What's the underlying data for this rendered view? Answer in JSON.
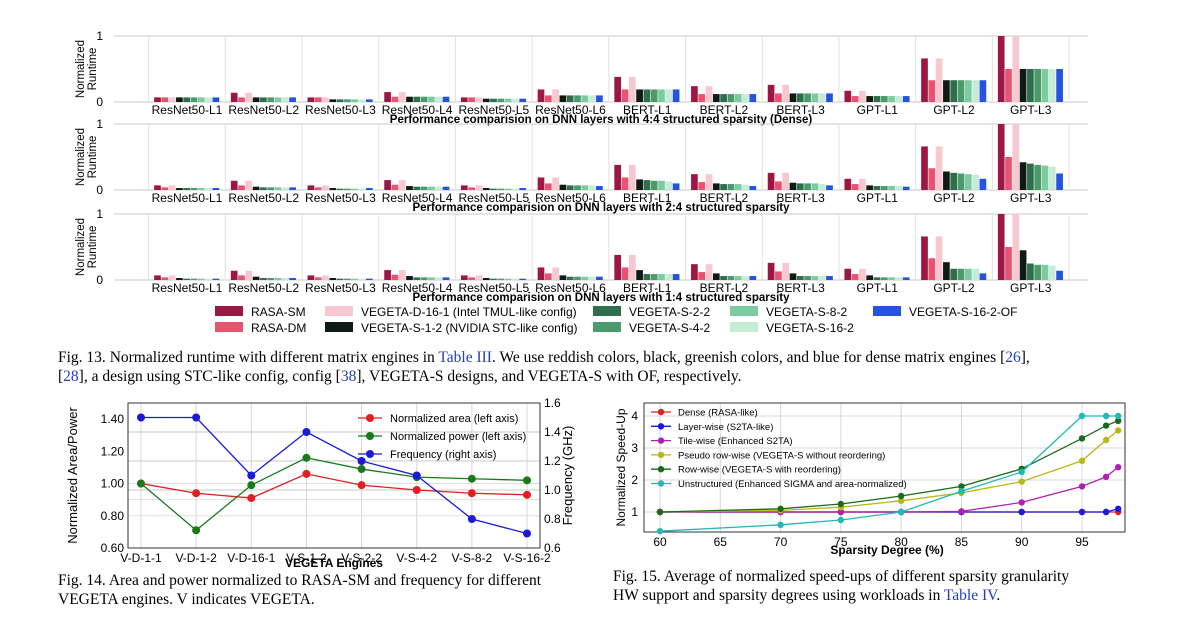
{
  "fig13": {
    "y_label_line1": "Normalized",
    "y_label_line2": "Runtime",
    "ylim": [
      0,
      1
    ],
    "y_ticks": [
      "1",
      "0"
    ],
    "layers": [
      "ResNet50-L1",
      "ResNet50-L2",
      "ResNet50-L3",
      "ResNet50-L4",
      "ResNet50-L5",
      "ResNet50-L6",
      "BERT-L1",
      "BERT-L2",
      "BERT-L3",
      "GPT-L1",
      "GPT-L2",
      "GPT-L3"
    ],
    "engines": [
      {
        "name": "RASA-SM",
        "color": "#9c1746"
      },
      {
        "name": "RASA-DM",
        "color": "#e8546f"
      },
      {
        "name": "VEGETA-D-16-1 (Intel TMUL-like config)",
        "color": "#f8c7d0"
      },
      {
        "name": "VEGETA-S-1-2 (NVIDIA STC-like config)",
        "color": "#0f1a14"
      },
      {
        "name": "VEGETA-S-2-2",
        "color": "#2f6e4c"
      },
      {
        "name": "VEGETA-S-4-2",
        "color": "#4a9a6c"
      },
      {
        "name": "VEGETA-S-8-2",
        "color": "#7ccaa0"
      },
      {
        "name": "VEGETA-S-16-2",
        "color": "#c6ecd6"
      },
      {
        "name": "VEGETA-S-16-2-OF",
        "color": "#2552e0"
      }
    ],
    "legend_order": [
      0,
      2,
      4,
      6,
      8,
      1,
      3,
      5,
      7
    ],
    "panels": [
      {
        "caption": "Performance comparision on DNN layers with 4:4 structured sparsity (Dense)",
        "values": [
          [
            0.07,
            0.07,
            0.07,
            0.07,
            0.07,
            0.07,
            0.07,
            0.07,
            0.07
          ],
          [
            0.14,
            0.07,
            0.14,
            0.07,
            0.07,
            0.07,
            0.07,
            0.07,
            0.07
          ],
          [
            0.07,
            0.07,
            0.07,
            0.04,
            0.04,
            0.04,
            0.04,
            0.04,
            0.04
          ],
          [
            0.15,
            0.08,
            0.15,
            0.08,
            0.08,
            0.08,
            0.08,
            0.08,
            0.08
          ],
          [
            0.07,
            0.07,
            0.07,
            0.05,
            0.05,
            0.05,
            0.05,
            0.05,
            0.05
          ],
          [
            0.19,
            0.1,
            0.19,
            0.1,
            0.1,
            0.1,
            0.1,
            0.1,
            0.1
          ],
          [
            0.38,
            0.19,
            0.38,
            0.19,
            0.19,
            0.19,
            0.19,
            0.19,
            0.19
          ],
          [
            0.24,
            0.12,
            0.24,
            0.12,
            0.12,
            0.12,
            0.12,
            0.12,
            0.12
          ],
          [
            0.26,
            0.13,
            0.26,
            0.13,
            0.13,
            0.13,
            0.13,
            0.13,
            0.13
          ],
          [
            0.17,
            0.09,
            0.17,
            0.09,
            0.09,
            0.09,
            0.09,
            0.09,
            0.09
          ],
          [
            0.66,
            0.33,
            0.66,
            0.33,
            0.33,
            0.33,
            0.33,
            0.33,
            0.33
          ],
          [
            1.0,
            0.5,
            1.0,
            0.5,
            0.5,
            0.5,
            0.5,
            0.5,
            0.5
          ]
        ]
      },
      {
        "caption": "Performance comparision on DNN layers with 2:4 structured sparsity",
        "values": [
          [
            0.07,
            0.04,
            0.07,
            0.03,
            0.03,
            0.03,
            0.03,
            0.03,
            0.03
          ],
          [
            0.14,
            0.07,
            0.14,
            0.05,
            0.04,
            0.04,
            0.04,
            0.04,
            0.04
          ],
          [
            0.07,
            0.04,
            0.07,
            0.03,
            0.02,
            0.02,
            0.02,
            0.02,
            0.03
          ],
          [
            0.15,
            0.08,
            0.15,
            0.06,
            0.05,
            0.05,
            0.05,
            0.05,
            0.05
          ],
          [
            0.07,
            0.04,
            0.07,
            0.03,
            0.02,
            0.02,
            0.02,
            0.02,
            0.03
          ],
          [
            0.19,
            0.1,
            0.19,
            0.08,
            0.07,
            0.07,
            0.07,
            0.07,
            0.06
          ],
          [
            0.38,
            0.19,
            0.38,
            0.16,
            0.15,
            0.14,
            0.14,
            0.13,
            0.1
          ],
          [
            0.24,
            0.12,
            0.24,
            0.1,
            0.09,
            0.09,
            0.09,
            0.08,
            0.06
          ],
          [
            0.26,
            0.13,
            0.26,
            0.11,
            0.1,
            0.1,
            0.1,
            0.09,
            0.07
          ],
          [
            0.17,
            0.09,
            0.17,
            0.07,
            0.06,
            0.06,
            0.06,
            0.06,
            0.05
          ],
          [
            0.66,
            0.33,
            0.66,
            0.28,
            0.26,
            0.25,
            0.24,
            0.23,
            0.17
          ],
          [
            1.0,
            0.5,
            1.0,
            0.42,
            0.4,
            0.38,
            0.37,
            0.35,
            0.25
          ]
        ]
      },
      {
        "caption": "Performance comparision on DNN layers with 1:4 structured sparsity",
        "values": [
          [
            0.07,
            0.04,
            0.07,
            0.03,
            0.02,
            0.02,
            0.02,
            0.02,
            0.02
          ],
          [
            0.14,
            0.07,
            0.14,
            0.05,
            0.03,
            0.03,
            0.03,
            0.03,
            0.03
          ],
          [
            0.07,
            0.04,
            0.07,
            0.03,
            0.02,
            0.02,
            0.02,
            0.02,
            0.02
          ],
          [
            0.15,
            0.08,
            0.15,
            0.06,
            0.04,
            0.04,
            0.04,
            0.04,
            0.04
          ],
          [
            0.07,
            0.04,
            0.07,
            0.03,
            0.02,
            0.02,
            0.02,
            0.02,
            0.02
          ],
          [
            0.19,
            0.1,
            0.19,
            0.07,
            0.05,
            0.05,
            0.05,
            0.05,
            0.05
          ],
          [
            0.38,
            0.19,
            0.38,
            0.15,
            0.09,
            0.09,
            0.09,
            0.09,
            0.09
          ],
          [
            0.24,
            0.12,
            0.24,
            0.1,
            0.06,
            0.06,
            0.06,
            0.06,
            0.06
          ],
          [
            0.26,
            0.13,
            0.26,
            0.1,
            0.06,
            0.06,
            0.06,
            0.06,
            0.06
          ],
          [
            0.17,
            0.09,
            0.17,
            0.07,
            0.04,
            0.04,
            0.04,
            0.04,
            0.04
          ],
          [
            0.66,
            0.33,
            0.66,
            0.27,
            0.17,
            0.17,
            0.17,
            0.17,
            0.1
          ],
          [
            1.0,
            0.5,
            1.0,
            0.45,
            0.25,
            0.23,
            0.23,
            0.22,
            0.14
          ]
        ]
      }
    ],
    "caption": {
      "label": "Fig. 13.",
      "parts": [
        {
          "t": "Normalized runtime with different matrix engines in ",
          "link": false
        },
        {
          "t": "Table III",
          "link": true
        },
        {
          "t": ". We use reddish colors, black, greenish colors, and blue for dense matrix engines [",
          "link": false
        },
        {
          "t": "26",
          "link": true
        },
        {
          "t": "],",
          "link": false
        }
      ],
      "parts2": [
        {
          "t": "[",
          "link": false
        },
        {
          "t": "28",
          "link": true
        },
        {
          "t": "], a design using STC-like config, config [",
          "link": false
        },
        {
          "t": "38",
          "link": true
        },
        {
          "t": "], VEGETA-S designs, and VEGETA-S with OF, respectively.",
          "link": false
        }
      ]
    }
  },
  "fig14": {
    "chart_data": {
      "type": "line",
      "categories": [
        "V-D-1-1",
        "V-D-1-2",
        "V-D-16-1",
        "V-S-1-2",
        "V-S-2-2",
        "V-S-4-2",
        "V-S-8-2",
        "V-S-16-2"
      ],
      "xlabel": "VEGETA Engines",
      "ylabel_left": "Normalized Area/Power",
      "ylabel_right": "Frequency (GHz)",
      "ylim_left": [
        0.6,
        1.5
      ],
      "ylim_right": [
        0.6,
        1.6
      ],
      "yticks_left": [
        "0.60",
        "0.80",
        "1.00",
        "1.20",
        "1.40"
      ],
      "yticks_right": [
        "0.6",
        "0.8",
        "1.0",
        "1.2",
        "1.4",
        "1.6"
      ],
      "series": [
        {
          "name": "Normalized area (left axis)",
          "axis": "left",
          "color": "#e02020",
          "values": [
            1.0,
            0.94,
            0.91,
            1.06,
            0.99,
            0.96,
            0.94,
            0.93
          ]
        },
        {
          "name": "Normalized power (left axis)",
          "axis": "left",
          "color": "#1a7a1a",
          "values": [
            1.0,
            0.71,
            0.99,
            1.16,
            1.09,
            1.04,
            1.03,
            1.02
          ]
        },
        {
          "name": "Frequency (right axis)",
          "axis": "right",
          "color": "#1a1ad8",
          "values": [
            1.5,
            1.5,
            1.1,
            1.4,
            1.2,
            1.1,
            0.8,
            0.7
          ]
        }
      ]
    },
    "caption_label": "Fig. 14.",
    "caption_line1": "Area and power normalized to RASA-SM and frequency for different",
    "caption_line2": "VEGETA engines. V indicates VEGETA."
  },
  "fig15": {
    "chart_data": {
      "type": "line",
      "xlabel": "Sparsity Degree (%)",
      "ylabel": "Normalized Speed-Up",
      "xlim": [
        60,
        98
      ],
      "ylim": [
        0.3,
        4.1
      ],
      "xticks": [
        "60",
        "65",
        "70",
        "75",
        "80",
        "85",
        "90",
        "95"
      ],
      "yticks": [
        "1",
        "2",
        "3",
        "4"
      ],
      "series": [
        {
          "name": "Dense (RASA-like)",
          "color": "#e02020",
          "x": [
            60,
            70,
            75,
            80,
            85,
            90,
            95,
            97,
            98
          ],
          "values": [
            1,
            1,
            1,
            1,
            1,
            1,
            1,
            1,
            1
          ]
        },
        {
          "name": "Layer-wise (S2TA-like)",
          "color": "#1a1ad8",
          "x": [
            60,
            70,
            75,
            80,
            85,
            90,
            95,
            97,
            98
          ],
          "values": [
            1,
            1,
            1,
            1,
            1,
            1,
            1,
            1,
            1.1
          ]
        },
        {
          "name": "Tile-wise (Enhanced S2TA)",
          "color": "#b020b0",
          "x": [
            60,
            70,
            75,
            80,
            85,
            90,
            95,
            97,
            98
          ],
          "values": [
            1,
            1,
            1,
            1,
            1.02,
            1.3,
            1.8,
            2.1,
            2.4
          ]
        },
        {
          "name": "Pseudo row-wise (VEGETA-S without reordering)",
          "color": "#b8b81a",
          "x": [
            60,
            70,
            75,
            80,
            85,
            90,
            95,
            97,
            98
          ],
          "values": [
            1,
            1.05,
            1.15,
            1.35,
            1.6,
            1.95,
            2.6,
            3.25,
            3.55
          ]
        },
        {
          "name": "Row-wise (VEGETA-S with reordering)",
          "color": "#1a6a1a",
          "x": [
            60,
            70,
            75,
            80,
            85,
            90,
            95,
            97,
            98
          ],
          "values": [
            1,
            1.1,
            1.25,
            1.5,
            1.8,
            2.35,
            3.3,
            3.7,
            3.85
          ]
        },
        {
          "name": "Unstructured (Enhanced SIGMA and area-normalized)",
          "color": "#20b8b8",
          "x": [
            60,
            70,
            75,
            80,
            85,
            90,
            95,
            97,
            98
          ],
          "values": [
            0.4,
            0.6,
            0.75,
            1,
            1.65,
            2.25,
            4,
            4,
            4
          ]
        }
      ]
    },
    "caption_label": "Fig. 15.",
    "caption_line1": "Average of normalized speed-ups of different sparsity granularity",
    "caption_line2_pre": "HW support and sparsity degrees using workloads in ",
    "caption_line2_link": "Table IV",
    "caption_line2_post": "."
  },
  "colors": {
    "link": "#1f3fbf",
    "grid": "#c8c8c8"
  }
}
